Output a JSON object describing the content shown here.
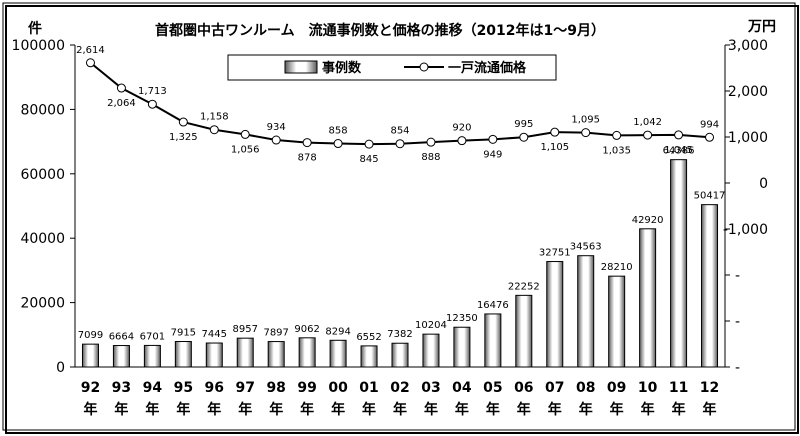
{
  "chart_data": {
    "type": "bar+line",
    "title": "首都圏中古ワンルーム　流通事例数と価格の推移（2012年は1〜9月）",
    "left_axis": {
      "unit": "件",
      "ylim": [
        0,
        100000
      ],
      "ticks": [
        0,
        20000,
        40000,
        60000,
        80000,
        100000
      ],
      "tick_labels": [
        "0",
        "20000",
        "40000",
        "60000",
        "80000",
        "100000"
      ]
    },
    "right_axis": {
      "unit": "万円",
      "ylim": [
        -4000,
        3000
      ],
      "ticks": [
        -4000,
        -3000,
        -2000,
        -1000,
        0,
        1000,
        2000,
        3000
      ],
      "tick_labels": [
        "-",
        "-",
        "-",
        "-1,000",
        "0",
        "1,000",
        "2,000",
        "3,000"
      ]
    },
    "x": [
      "92",
      "93",
      "94",
      "95",
      "96",
      "97",
      "98",
      "99",
      "00",
      "01",
      "02",
      "03",
      "04",
      "05",
      "06",
      "07",
      "08",
      "09",
      "10",
      "11",
      "12"
    ],
    "x_suffix": "年",
    "series": [
      {
        "name": "事例数",
        "kind": "bar",
        "axis": "left",
        "values": [
          7099,
          6664,
          6701,
          7915,
          7445,
          8957,
          7897,
          9062,
          8294,
          6552,
          7382,
          10204,
          12350,
          16476,
          22252,
          32751,
          34563,
          28210,
          42920,
          64386,
          50417
        ],
        "labels": [
          "7099",
          "6664",
          "6701",
          "7915",
          "7445",
          "8957",
          "7897",
          "9062",
          "8294",
          "6552",
          "7382",
          "10204",
          "12350",
          "16476",
          "22252",
          "32751",
          "34563",
          "28210",
          "42920",
          "64386",
          "50417"
        ]
      },
      {
        "name": "一戸流通価格",
        "kind": "line",
        "axis": "right",
        "values": [
          2614,
          2064,
          1713,
          1325,
          1158,
          1056,
          934,
          878,
          858,
          845,
          854,
          888,
          920,
          949,
          995,
          1105,
          1095,
          1035,
          1042,
          1045,
          994
        ],
        "labels": [
          "2,614",
          "2,064",
          "1,713",
          "1,325",
          "1,158",
          "1,056",
          "934",
          "878",
          "858",
          "845",
          "854",
          "888",
          "920",
          "949",
          "995",
          "1,105",
          "1,095",
          "1,035",
          "1,042",
          "1,045",
          "994"
        ]
      }
    ],
    "legend": {
      "position": "top-center"
    }
  }
}
